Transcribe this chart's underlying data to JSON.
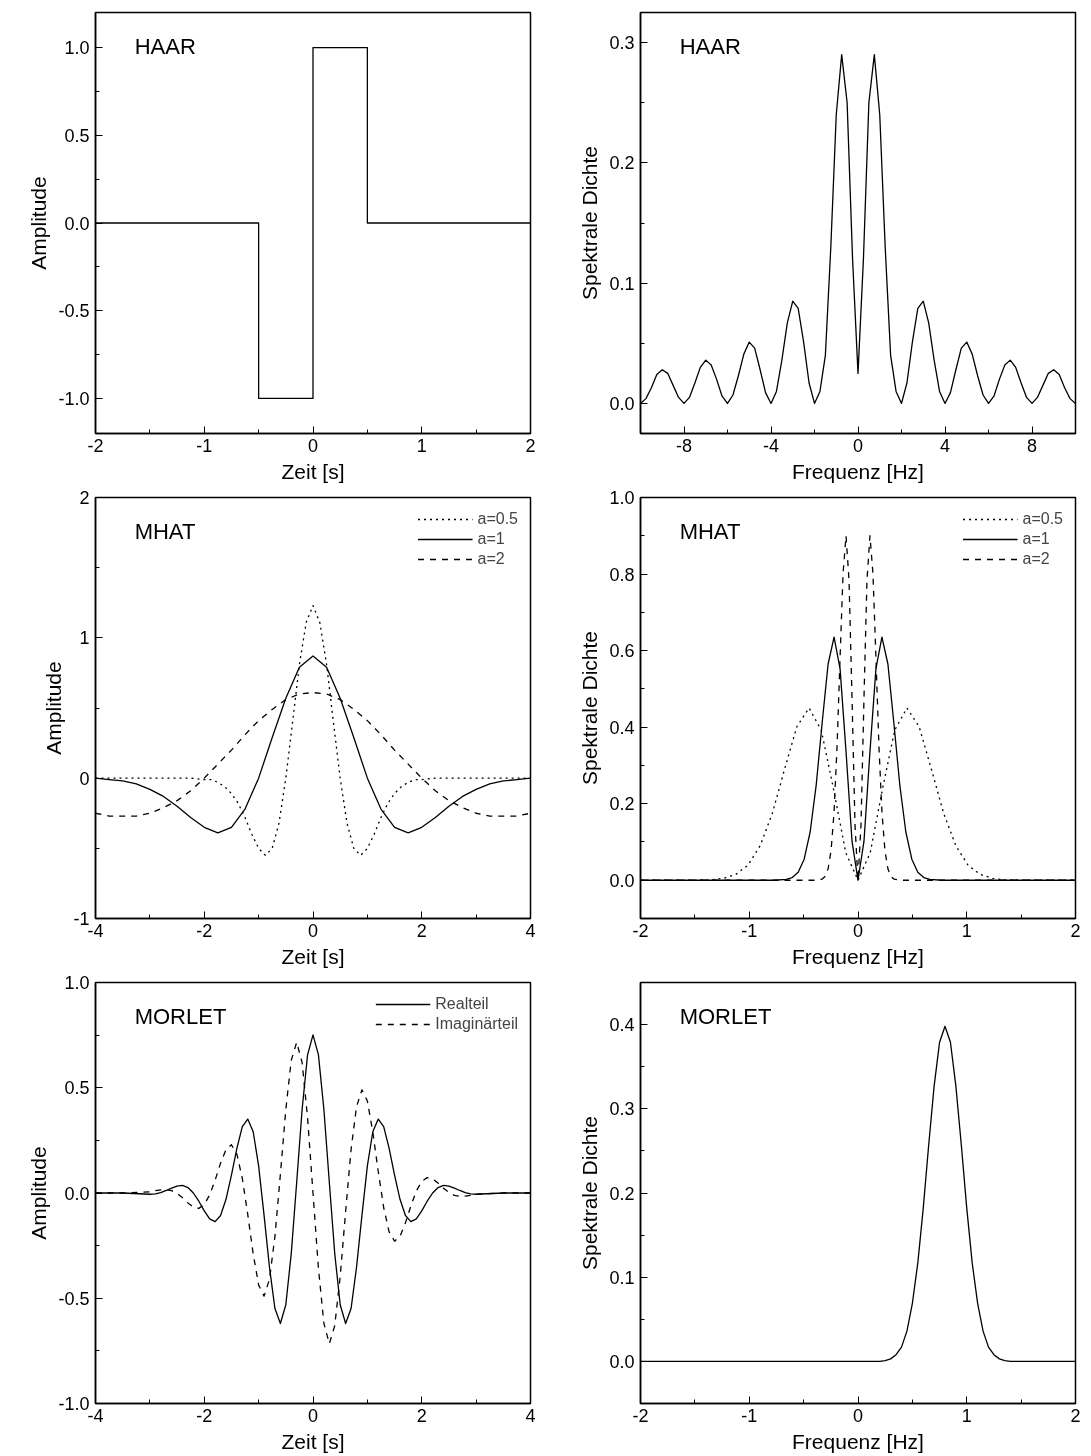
{
  "chart_data": [
    {
      "type": "line",
      "title": "HAAR",
      "xlabel": "Zeit [s]",
      "ylabel": "Amplitude",
      "grid": false,
      "xlim": [
        -2,
        2
      ],
      "ylim": [
        -1.2,
        1.2
      ],
      "xticks": [
        -2,
        {
          "value": -1.5,
          "label": null
        },
        -1,
        {
          "value": -0.5,
          "label": null
        },
        0,
        {
          "value": 0.5,
          "label": null
        },
        1,
        {
          "value": 1.5,
          "label": null
        },
        2
      ],
      "yticks": [
        {
          "value": -1,
          "label": "-1.0"
        },
        {
          "value": -0.75,
          "label": null
        },
        {
          "value": -0.5,
          "label": "-0.5"
        },
        {
          "value": -0.25,
          "label": null
        },
        {
          "value": 0,
          "label": "0.0"
        },
        {
          "value": 0.25,
          "label": null
        },
        {
          "value": 0.5,
          "label": "0.5"
        },
        {
          "value": 0.75,
          "label": null
        },
        {
          "value": 1,
          "label": "1.0"
        }
      ],
      "series": [
        {
          "color": "#000000",
          "line_style": "solid",
          "x": [
            -2,
            -0.5,
            -0.5,
            0,
            0,
            0.5,
            0.5,
            2
          ],
          "values": [
            0,
            0,
            -1,
            -1,
            1,
            1,
            0,
            0
          ]
        }
      ]
    },
    {
      "type": "line",
      "title": "HAAR",
      "xlabel": "Frequenz [Hz]",
      "ylabel": "Spektrale Dichte",
      "grid": false,
      "xlim": [
        -10,
        10
      ],
      "ylim": [
        -0.025,
        0.325
      ],
      "xticks": [
        -8,
        {
          "value": -6,
          "label": null
        },
        -4,
        {
          "value": -2,
          "label": null
        },
        0,
        {
          "value": 2,
          "label": null
        },
        4,
        {
          "value": 6,
          "label": null
        },
        8
      ],
      "yticks": [
        {
          "value": 0,
          "label": "0.0"
        },
        {
          "value": 0.05,
          "label": null
        },
        {
          "value": 0.1,
          "label": "0.1"
        },
        {
          "value": 0.15,
          "label": null
        },
        {
          "value": 0.2,
          "label": "0.2"
        },
        {
          "value": 0.25,
          "label": null
        },
        {
          "value": 0.3,
          "label": "0.3"
        }
      ],
      "series": [
        {
          "color": "#000000",
          "line_style": "solid",
          "x": [
            -10,
            -9.75,
            -9.5,
            -9.25,
            -9,
            -8.75,
            -8.5,
            -8.25,
            -8,
            -7.75,
            -7.5,
            -7.25,
            -7,
            -6.75,
            -6.5,
            -6.25,
            -6,
            -5.75,
            -5.5,
            -5.25,
            -5,
            -4.75,
            -4.5,
            -4.25,
            -4,
            -3.75,
            -3.5,
            -3.25,
            -3,
            -2.75,
            -2.5,
            -2.25,
            -2,
            -1.75,
            -1.5,
            -1.25,
            -1,
            -0.75,
            -0.5,
            -0.25,
            0,
            0.25,
            0.5,
            0.75,
            1,
            1.25,
            1.5,
            1.75,
            2,
            2.25,
            2.5,
            2.75,
            3,
            3.25,
            3.5,
            3.75,
            4,
            4.25,
            4.5,
            4.75,
            5,
            5.25,
            5.5,
            5.75,
            6,
            6.25,
            6.5,
            6.75,
            7,
            7.25,
            7.5,
            7.75,
            8,
            8.25,
            8.5,
            8.75,
            9,
            9.25,
            9.5,
            9.75,
            10
          ],
          "values": [
            0,
            0.004,
            0.013,
            0.024,
            0.028,
            0.025,
            0.015,
            0.005,
            0,
            0.005,
            0.017,
            0.03,
            0.036,
            0.032,
            0.02,
            0.006,
            0,
            0.007,
            0.023,
            0.041,
            0.051,
            0.046,
            0.028,
            0.009,
            0,
            0.01,
            0.036,
            0.067,
            0.085,
            0.079,
            0.051,
            0.017,
            0,
            0.01,
            0.04,
            0.13,
            0.24,
            0.29,
            0.25,
            0.12,
            0.025,
            0.12,
            0.25,
            0.29,
            0.24,
            0.13,
            0.04,
            0.01,
            0,
            0.017,
            0.051,
            0.079,
            0.085,
            0.067,
            0.036,
            0.01,
            0,
            0.009,
            0.028,
            0.046,
            0.051,
            0.041,
            0.023,
            0.007,
            0,
            0.006,
            0.02,
            0.032,
            0.036,
            0.03,
            0.017,
            0.005,
            0,
            0.005,
            0.015,
            0.025,
            0.028,
            0.024,
            0.013,
            0.004,
            0
          ]
        }
      ]
    },
    {
      "type": "line",
      "title": "MHAT",
      "xlabel": "Zeit [s]",
      "ylabel": "Amplitude",
      "grid": false,
      "legend": "top right",
      "xlim": [
        -4,
        4
      ],
      "ylim": [
        -1,
        2
      ],
      "xticks": [
        -4,
        {
          "value": -3,
          "label": null
        },
        -2,
        {
          "value": -1,
          "label": null
        },
        0,
        {
          "value": 1,
          "label": null
        },
        2,
        {
          "value": 3,
          "label": null
        },
        4
      ],
      "yticks": [
        -1,
        {
          "value": -0.5,
          "label": null
        },
        0,
        {
          "value": 0.5,
          "label": null
        },
        1,
        {
          "value": 1.5,
          "label": null
        },
        2
      ],
      "series": [
        {
          "name": "a=0.5",
          "color": "#000000",
          "line_style": "dotted",
          "x": [
            -4,
            -3,
            -2.5,
            -2.25,
            -2,
            -1.875,
            -1.75,
            -1.625,
            -1.5,
            -1.375,
            -1.25,
            -1.125,
            -1,
            -0.875,
            -0.75,
            -0.625,
            -0.5,
            -0.375,
            -0.25,
            -0.125,
            0,
            0.125,
            0.25,
            0.375,
            0.5,
            0.625,
            0.75,
            0.875,
            1,
            1.125,
            1.25,
            1.375,
            1.5,
            1.625,
            1.75,
            1.875,
            2,
            2.25,
            2.5,
            3,
            4
          ],
          "values": [
            0,
            0,
            0,
            0,
            -0.01,
            -0.01,
            -0.03,
            -0.06,
            -0.11,
            -0.18,
            -0.28,
            -0.4,
            -0.5,
            -0.55,
            -0.5,
            -0.32,
            0,
            0.4,
            0.81,
            1.11,
            1.23,
            1.11,
            0.81,
            0.4,
            0,
            -0.32,
            -0.5,
            -0.55,
            -0.5,
            -0.4,
            -0.28,
            -0.18,
            -0.11,
            -0.06,
            -0.03,
            -0.01,
            -0.01,
            0,
            0,
            0,
            0
          ]
        },
        {
          "name": "a=1",
          "color": "#000000",
          "line_style": "solid",
          "x": [
            -4,
            -3.75,
            -3.5,
            -3.25,
            -3,
            -2.75,
            -2.5,
            -2.25,
            -2,
            -1.75,
            -1.5,
            -1.25,
            -1,
            -0.75,
            -0.5,
            -0.25,
            0,
            0.25,
            0.5,
            0.75,
            1,
            1.25,
            1.5,
            1.75,
            2,
            2.25,
            2.5,
            2.75,
            3,
            3.25,
            3.5,
            3.75,
            4
          ],
          "values": [
            0,
            -0.01,
            -0.02,
            -0.04,
            -0.08,
            -0.13,
            -0.2,
            -0.28,
            -0.35,
            -0.39,
            -0.35,
            -0.22,
            0,
            0.29,
            0.57,
            0.79,
            0.87,
            0.79,
            0.57,
            0.29,
            0,
            -0.22,
            -0.35,
            -0.39,
            -0.35,
            -0.28,
            -0.2,
            -0.13,
            -0.08,
            -0.04,
            -0.02,
            -0.01,
            0
          ]
        },
        {
          "name": "a=2",
          "color": "#000000",
          "line_style": "dashed",
          "x": [
            -4,
            -3.75,
            -3.5,
            -3.25,
            -3,
            -2.75,
            -2.5,
            -2.25,
            -2,
            -1.75,
            -1.5,
            -1.25,
            -1,
            -0.75,
            -0.5,
            -0.25,
            0,
            0.25,
            0.5,
            0.75,
            1,
            1.25,
            1.5,
            1.75,
            2,
            2.25,
            2.5,
            2.75,
            3,
            3.25,
            3.5,
            3.75,
            4
          ],
          "values": [
            -0.25,
            -0.27,
            -0.27,
            -0.27,
            -0.25,
            -0.21,
            -0.16,
            -0.09,
            0,
            0.1,
            0.2,
            0.31,
            0.41,
            0.49,
            0.56,
            0.6,
            0.61,
            0.6,
            0.56,
            0.49,
            0.41,
            0.31,
            0.2,
            0.1,
            0,
            -0.09,
            -0.16,
            -0.21,
            -0.25,
            -0.27,
            -0.27,
            -0.27,
            -0.25
          ]
        }
      ]
    },
    {
      "type": "line",
      "title": "MHAT",
      "xlabel": "Frequenz [Hz]",
      "ylabel": "Spektrale Dichte",
      "grid": false,
      "legend": "top right",
      "xlim": [
        -2,
        2
      ],
      "ylim": [
        -0.1,
        1.0
      ],
      "xticks": [
        -2,
        {
          "value": -1.5,
          "label": null
        },
        -1,
        {
          "value": -0.5,
          "label": null
        },
        0,
        {
          "value": 0.5,
          "label": null
        },
        1,
        {
          "value": 1.5,
          "label": null
        },
        2
      ],
      "yticks": [
        {
          "value": 0,
          "label": "0.0"
        },
        {
          "value": 0.1,
          "label": null
        },
        {
          "value": 0.2,
          "label": "0.2"
        },
        {
          "value": 0.3,
          "label": null
        },
        {
          "value": 0.4,
          "label": "0.4"
        },
        {
          "value": 0.5,
          "label": null
        },
        {
          "value": 0.6,
          "label": "0.6"
        },
        {
          "value": 0.7,
          "label": null
        },
        {
          "value": 0.8,
          "label": "0.8"
        },
        {
          "value": 0.9,
          "label": null
        },
        {
          "value": 1,
          "label": "1.0"
        }
      ],
      "series": [
        {
          "name": "a=0.5",
          "color": "#000000",
          "line_style": "dotted",
          "x": [
            -2,
            -1.575,
            -1.35,
            -1.2375,
            -1.125,
            -1.0125,
            -0.9,
            -0.7875,
            -0.675,
            -0.5625,
            -0.45,
            -0.3375,
            -0.225,
            -0.1125,
            0,
            0.1125,
            0.225,
            0.3375,
            0.45,
            0.5625,
            0.675,
            0.7875,
            0.9,
            1.0125,
            1.125,
            1.2375,
            1.35,
            1.575,
            2
          ],
          "values": [
            0,
            0,
            0.001,
            0.005,
            0.015,
            0.039,
            0.09,
            0.175,
            0.29,
            0.401,
            0.45,
            0.392,
            0.238,
            0.072,
            0,
            0.072,
            0.238,
            0.392,
            0.45,
            0.401,
            0.29,
            0.175,
            0.09,
            0.039,
            0.015,
            0.005,
            0.001,
            0,
            0
          ]
        },
        {
          "name": "a=1",
          "color": "#000000",
          "line_style": "solid",
          "x": [
            -2,
            -0.77,
            -0.66,
            -0.605,
            -0.55,
            -0.495,
            -0.44,
            -0.385,
            -0.33,
            -0.275,
            -0.22,
            -0.165,
            -0.11,
            -0.055,
            0,
            0.055,
            0.11,
            0.165,
            0.22,
            0.275,
            0.33,
            0.385,
            0.44,
            0.495,
            0.55,
            0.605,
            0.66,
            0.77,
            2
          ],
          "values": [
            0,
            0,
            0.002,
            0.007,
            0.021,
            0.055,
            0.126,
            0.247,
            0.41,
            0.565,
            0.635,
            0.553,
            0.336,
            0.102,
            0,
            0.102,
            0.336,
            0.553,
            0.635,
            0.565,
            0.41,
            0.247,
            0.126,
            0.055,
            0.021,
            0.007,
            0.002,
            0,
            0
          ]
        },
        {
          "name": "a=2",
          "color": "#000000",
          "line_style": "dashed",
          "x": [
            -2,
            -0.385,
            -0.33,
            -0.3025,
            -0.275,
            -0.2475,
            -0.22,
            -0.1925,
            -0.165,
            -0.1375,
            -0.11,
            -0.0825,
            -0.055,
            -0.0275,
            0,
            0.0275,
            0.055,
            0.0825,
            0.11,
            0.1375,
            0.165,
            0.1925,
            0.22,
            0.2475,
            0.275,
            0.3025,
            0.33,
            0.385,
            2
          ],
          "values": [
            0,
            0,
            0.003,
            0.01,
            0.03,
            0.078,
            0.179,
            0.35,
            0.581,
            0.801,
            0.9,
            0.784,
            0.476,
            0.144,
            0,
            0.144,
            0.476,
            0.784,
            0.9,
            0.801,
            0.581,
            0.35,
            0.179,
            0.078,
            0.03,
            0.01,
            0.003,
            0,
            0
          ]
        }
      ]
    },
    {
      "type": "line",
      "title": "MORLET",
      "xlabel": "Zeit [s]",
      "ylabel": "Amplitude",
      "grid": false,
      "legend": "top right",
      "xlim": [
        -4,
        4
      ],
      "ylim": [
        -1,
        1
      ],
      "xticks": [
        -4,
        {
          "value": -3,
          "label": null
        },
        -2,
        {
          "value": -1,
          "label": null
        },
        0,
        {
          "value": 1,
          "label": null
        },
        2,
        {
          "value": 3,
          "label": null
        },
        4
      ],
      "yticks": [
        {
          "value": -1,
          "label": "-1.0"
        },
        {
          "value": -0.75,
          "label": null
        },
        {
          "value": -0.5,
          "label": "-0.5"
        },
        {
          "value": -0.25,
          "label": null
        },
        {
          "value": 0,
          "label": "0.0"
        },
        {
          "value": 0.25,
          "label": null
        },
        {
          "value": 0.5,
          "label": "0.5"
        },
        {
          "value": 0.75,
          "label": null
        },
        {
          "value": 1,
          "label": "1.0"
        }
      ],
      "x": [
        -4,
        -3.5,
        -3,
        -2.9,
        -2.8,
        -2.7,
        -2.6,
        -2.5,
        -2.4,
        -2.3,
        -2.2,
        -2.1,
        -2,
        -1.9,
        -1.8,
        -1.7,
        -1.6,
        -1.5,
        -1.4,
        -1.3,
        -1.2,
        -1.1,
        -1,
        -0.9,
        -0.8,
        -0.7,
        -0.6,
        -0.5,
        -0.4,
        -0.3,
        -0.2,
        -0.1,
        0,
        0.1,
        0.2,
        0.3,
        0.4,
        0.5,
        0.6,
        0.7,
        0.8,
        0.9,
        1,
        1.1,
        1.2,
        1.3,
        1.4,
        1.5,
        1.6,
        1.7,
        1.8,
        1.9,
        2,
        2.1,
        2.2,
        2.3,
        2.4,
        2.5,
        2.6,
        2.7,
        2.8,
        2.9,
        3,
        3.5,
        4
      ],
      "series": [
        {
          "name": "Realteil",
          "color": "#000000",
          "line_style": "solid",
          "values": [
            0,
            0,
            -0.006,
            -0.004,
            0.002,
            0.012,
            0.023,
            0.033,
            0.036,
            0.026,
            0,
            -0.039,
            -0.085,
            -0.123,
            -0.136,
            -0.107,
            -0.03,
            0.085,
            0.212,
            0.315,
            0.351,
            0.291,
            0.129,
            -0.106,
            -0.354,
            -0.549,
            -0.62,
            -0.531,
            -0.288,
            0.051,
            0.398,
            0.656,
            0.751,
            0.656,
            0.398,
            0.051,
            -0.288,
            -0.531,
            -0.62,
            -0.549,
            -0.354,
            -0.106,
            0.129,
            0.291,
            0.351,
            0.315,
            0.212,
            0.085,
            -0.03,
            -0.107,
            -0.136,
            -0.123,
            -0.085,
            -0.039,
            0,
            0.026,
            0.036,
            0.033,
            0.023,
            0.012,
            0.002,
            -0.004,
            -0.006,
            0,
            0
          ]
        },
        {
          "name": "Imaginärteil",
          "color": "#000000",
          "line_style": "dashed",
          "values": [
            0,
            0,
            0.005,
            0.011,
            0.015,
            0.016,
            0.011,
            -0.002,
            -0.023,
            -0.047,
            -0.067,
            -0.073,
            -0.055,
            -0.009,
            0.061,
            0.142,
            0.206,
            0.229,
            0.185,
            0.069,
            -0.102,
            -0.289,
            -0.437,
            -0.49,
            -0.41,
            -0.206,
            0.088,
            0.397,
            0.63,
            0.716,
            0.619,
            0.358,
            0,
            -0.358,
            -0.619,
            -0.716,
            -0.63,
            -0.397,
            -0.088,
            0.206,
            0.41,
            0.49,
            0.437,
            0.289,
            0.102,
            -0.069,
            -0.185,
            -0.229,
            -0.206,
            -0.142,
            -0.061,
            0.009,
            0.055,
            0.073,
            0.067,
            0.047,
            0.023,
            0.002,
            -0.011,
            -0.016,
            -0.015,
            -0.011,
            -0.005,
            0,
            0
          ]
        }
      ]
    },
    {
      "type": "line",
      "title": "MORLET",
      "xlabel": "Frequenz [Hz]",
      "ylabel": "Spektrale Dichte",
      "grid": false,
      "xlim": [
        -2,
        2
      ],
      "ylim": [
        -0.05,
        0.45
      ],
      "xticks": [
        -2,
        {
          "value": -1.5,
          "label": null
        },
        -1,
        {
          "value": -0.5,
          "label": null
        },
        0,
        {
          "value": 0.5,
          "label": null
        },
        1,
        {
          "value": 1.5,
          "label": null
        },
        2
      ],
      "yticks": [
        {
          "value": 0,
          "label": "0.0"
        },
        {
          "value": 0.05,
          "label": null
        },
        {
          "value": 0.1,
          "label": "0.1"
        },
        {
          "value": 0.15,
          "label": null
        },
        {
          "value": 0.2,
          "label": "0.2"
        },
        {
          "value": 0.25,
          "label": null
        },
        {
          "value": 0.3,
          "label": "0.3"
        },
        {
          "value": 0.35,
          "label": null
        },
        {
          "value": 0.4,
          "label": "0.4"
        }
      ],
      "series": [
        {
          "color": "#000000",
          "line_style": "solid",
          "x": [
            -2,
            0,
            0.2,
            0.25,
            0.3,
            0.35,
            0.4,
            0.45,
            0.5,
            0.55,
            0.6,
            0.65,
            0.7,
            0.75,
            0.8,
            0.85,
            0.9,
            0.95,
            1,
            1.05,
            1.1,
            1.15,
            1.2,
            1.25,
            1.3,
            1.35,
            1.4,
            1.6,
            2
          ],
          "values": [
            0,
            0,
            0,
            0.001,
            0.003,
            0.008,
            0.017,
            0.036,
            0.069,
            0.117,
            0.182,
            0.257,
            0.327,
            0.379,
            0.398,
            0.379,
            0.327,
            0.257,
            0.182,
            0.117,
            0.069,
            0.036,
            0.017,
            0.008,
            0.003,
            0.001,
            0,
            0,
            0
          ]
        }
      ]
    }
  ]
}
